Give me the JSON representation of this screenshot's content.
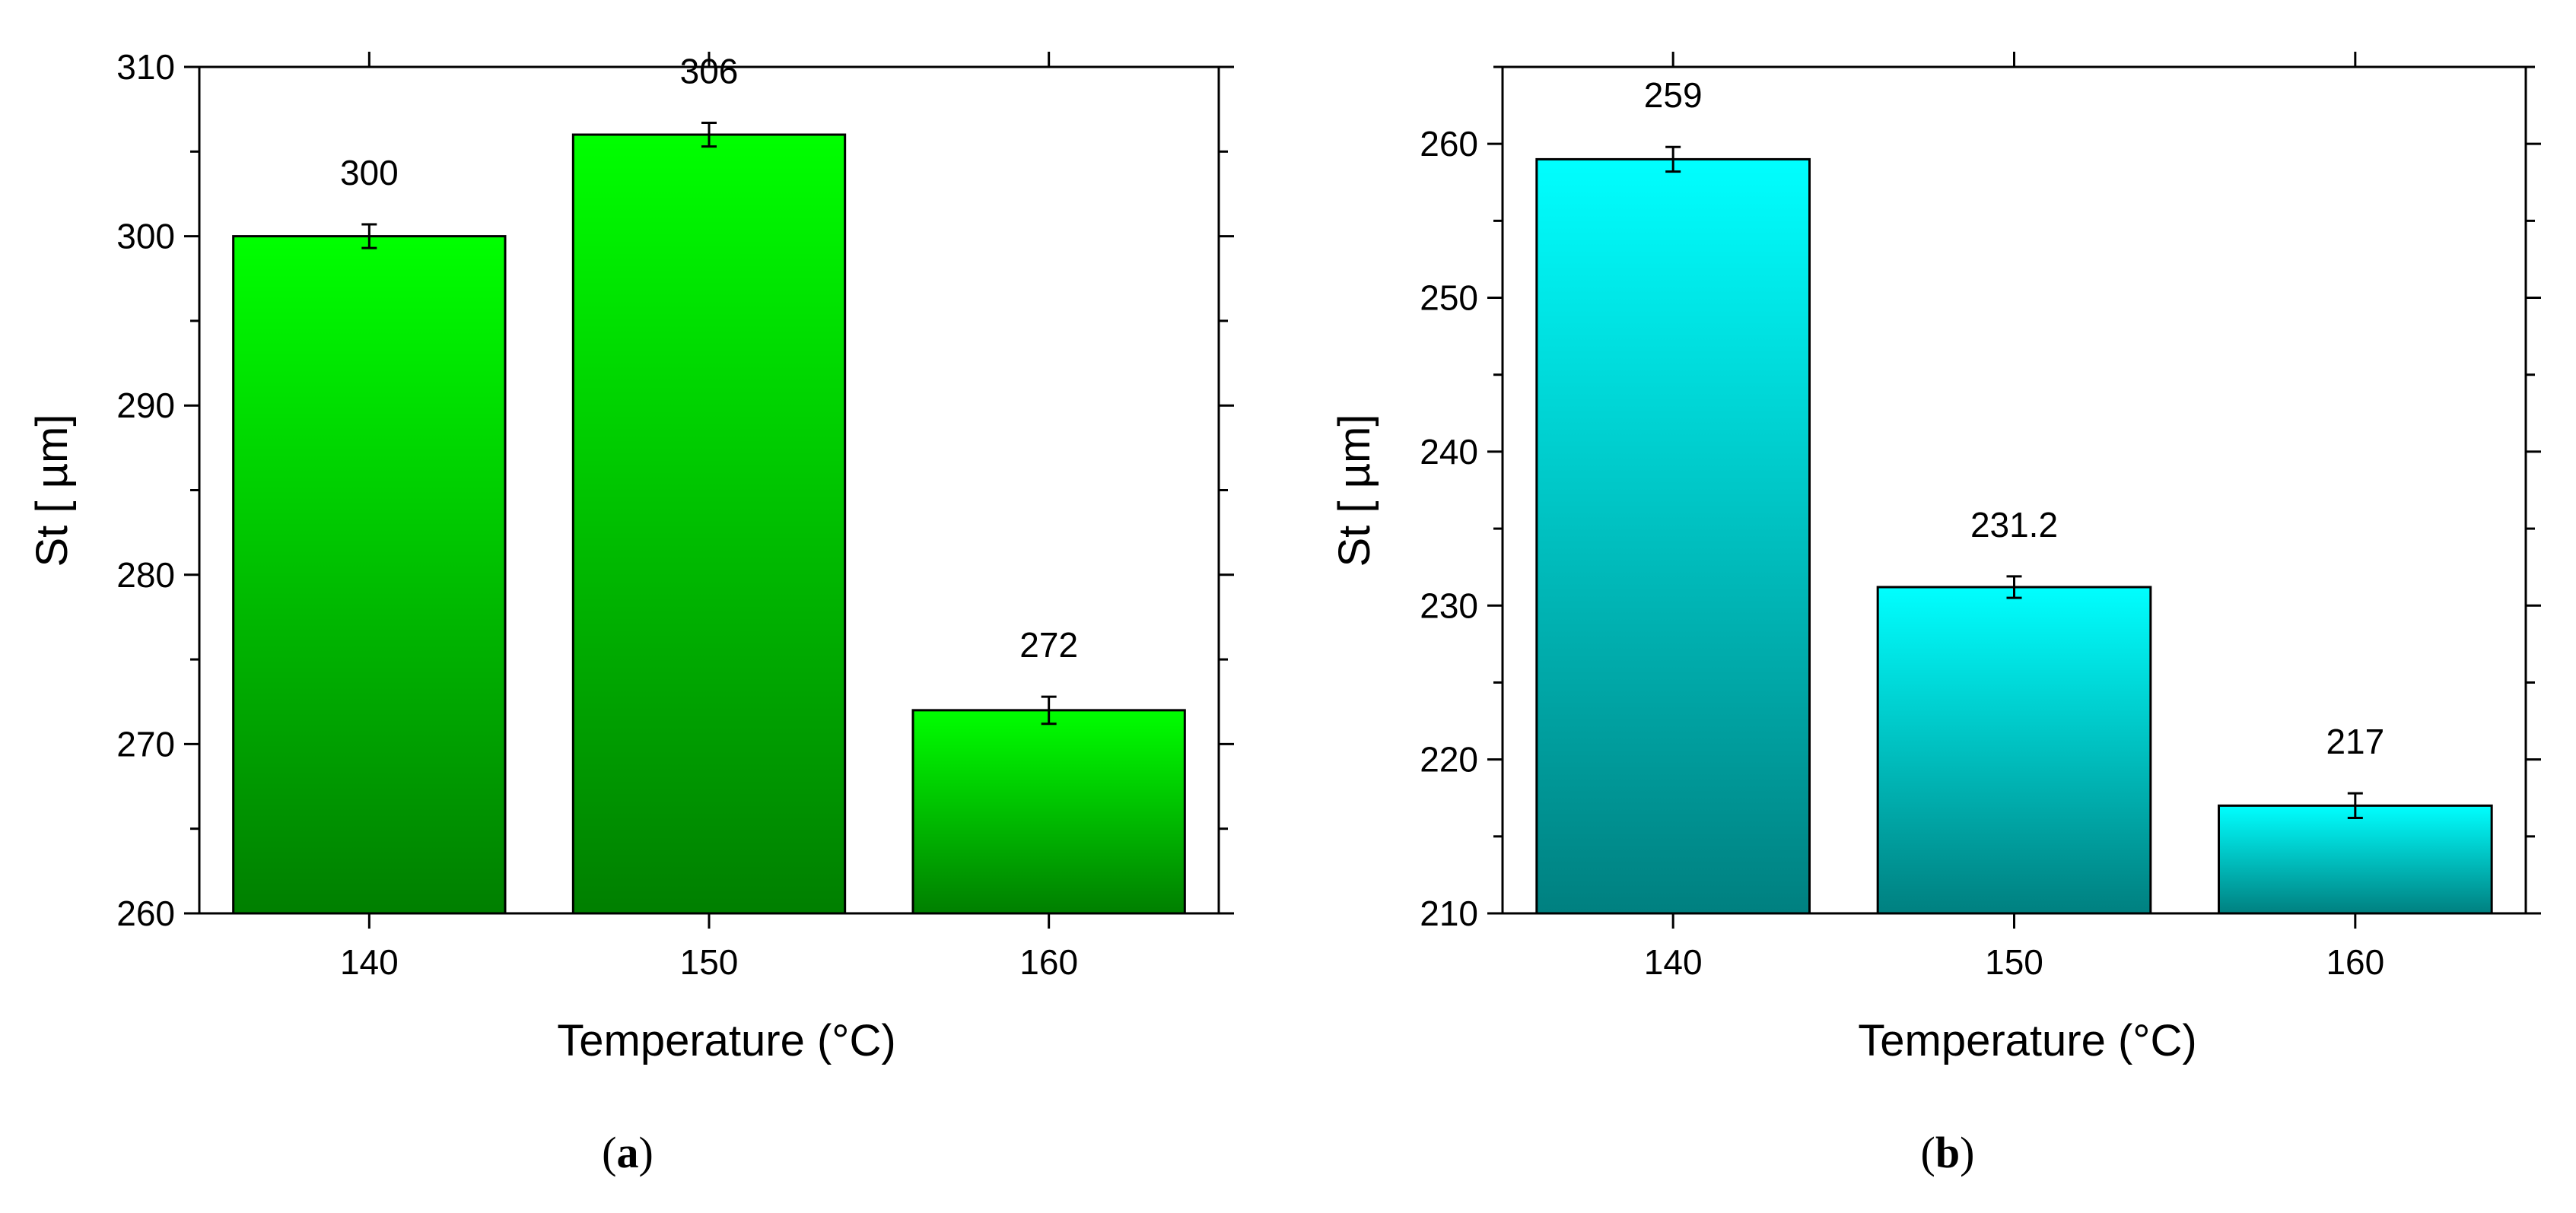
{
  "colors": {
    "panel_a_top": "#00ff00",
    "panel_a_bottom": "#007f00",
    "panel_b_top": "#00ffff",
    "panel_b_bottom": "#008080"
  },
  "chart_data": [
    {
      "type": "bar",
      "panel": "a",
      "caption_open": "(",
      "caption_letter": "a",
      "caption_close": ")",
      "xlabel": "Temperature (°C)",
      "ylabel": "St [ µm]",
      "categories": [
        "140",
        "150",
        "160"
      ],
      "values": [
        300,
        306,
        272
      ],
      "value_labels": [
        "300",
        "306",
        "272"
      ],
      "error": [
        0.7,
        0.7,
        0.8
      ],
      "ylim": [
        260,
        310
      ],
      "yticks": [
        260,
        270,
        280,
        290,
        300,
        310
      ],
      "grid": false,
      "legend": "none"
    },
    {
      "type": "bar",
      "panel": "b",
      "caption_open": "(",
      "caption_letter": "b",
      "caption_close": ")",
      "xlabel": "Temperature (°C)",
      "ylabel": "St [ µm]",
      "categories": [
        "140",
        "150",
        "160"
      ],
      "values": [
        259,
        231.2,
        217
      ],
      "value_labels": [
        "259",
        "231.2",
        "217"
      ],
      "error": [
        0.8,
        0.7,
        0.8
      ],
      "ylim": [
        210,
        265
      ],
      "yticks": [
        210,
        220,
        230,
        240,
        250,
        260
      ],
      "grid": false,
      "legend": "none"
    }
  ]
}
